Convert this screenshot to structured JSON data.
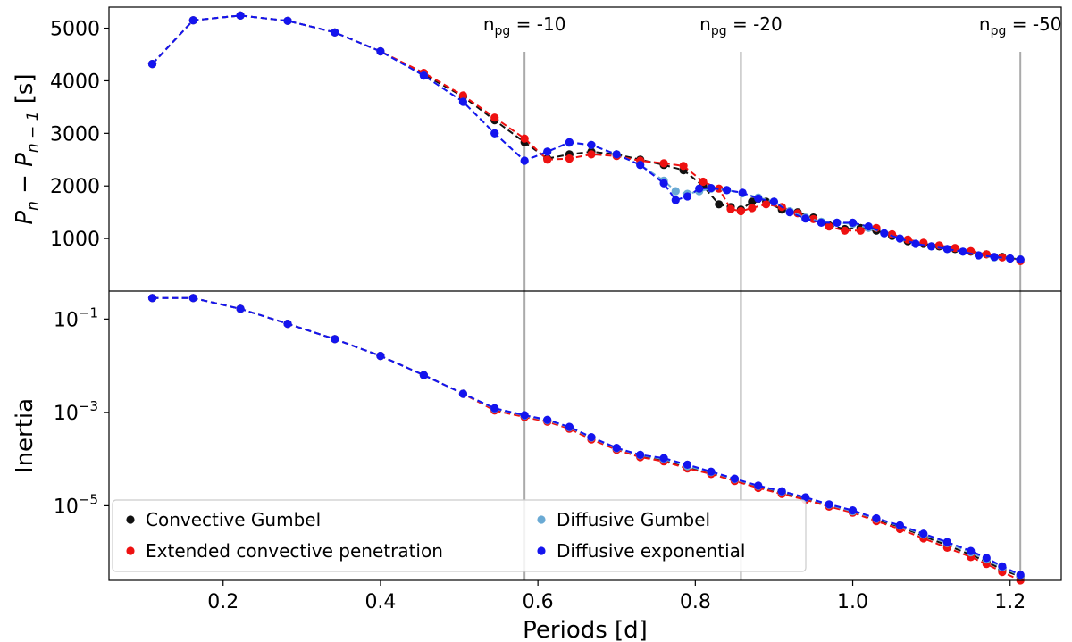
{
  "chart_data": [
    {
      "type": "line",
      "panel": "top",
      "ylabel_main": "P",
      "ylabel_sub1": "n",
      "ylabel_mid": " − P",
      "ylabel_sub2": "n − 1",
      "ylabel_unit": " [s]",
      "ylim": [
        0,
        5400
      ],
      "yticks": [
        1000,
        2000,
        3000,
        4000,
        5000
      ],
      "ytick_labels": [
        "1000",
        "2000",
        "3000",
        "4000",
        "5000"
      ],
      "series": [
        {
          "name": "Convective Gumbel",
          "color": "#111111",
          "x": [
            0.11,
            0.162,
            0.222,
            0.282,
            0.342,
            0.4,
            0.455,
            0.505,
            0.545,
            0.583,
            0.612,
            0.64,
            0.668,
            0.7,
            0.73,
            0.76,
            0.785,
            0.81,
            0.83,
            0.845,
            0.858,
            0.872,
            0.89,
            0.91,
            0.93,
            0.95,
            0.97,
            0.99,
            1.01,
            1.03,
            1.05,
            1.07,
            1.09,
            1.11,
            1.13,
            1.15,
            1.17,
            1.19,
            1.213
          ],
          "y": [
            4320,
            5150,
            5240,
            5140,
            4920,
            4560,
            4120,
            3700,
            3250,
            2830,
            2520,
            2600,
            2650,
            2600,
            2500,
            2400,
            2300,
            2000,
            1650,
            1600,
            1550,
            1700,
            1700,
            1550,
            1500,
            1400,
            1250,
            1180,
            1200,
            1150,
            1050,
            950,
            900,
            850,
            800,
            750,
            700,
            650,
            600
          ]
        },
        {
          "name": "Extended convective penetration",
          "color": "#ee1111",
          "x": [
            0.11,
            0.162,
            0.222,
            0.282,
            0.342,
            0.4,
            0.455,
            0.505,
            0.545,
            0.583,
            0.612,
            0.64,
            0.668,
            0.7,
            0.73,
            0.76,
            0.785,
            0.81,
            0.83,
            0.845,
            0.858,
            0.872,
            0.89,
            0.91,
            0.93,
            0.95,
            0.97,
            0.99,
            1.01,
            1.03,
            1.05,
            1.07,
            1.09,
            1.11,
            1.13,
            1.15,
            1.17,
            1.19,
            1.213
          ],
          "y": [
            4320,
            5150,
            5240,
            5140,
            4920,
            4560,
            4150,
            3720,
            3300,
            2900,
            2500,
            2520,
            2600,
            2570,
            2480,
            2430,
            2380,
            2080,
            1950,
            1560,
            1520,
            1580,
            1650,
            1600,
            1480,
            1370,
            1230,
            1150,
            1150,
            1200,
            1080,
            980,
            920,
            870,
            820,
            760,
            700,
            640,
            570
          ]
        },
        {
          "name": "Diffusive Gumbel",
          "color": "#6aaad4",
          "x": [
            0.11,
            0.162,
            0.222,
            0.282,
            0.342,
            0.4,
            0.455,
            0.505,
            0.545,
            0.583,
            0.612,
            0.64,
            0.668,
            0.7,
            0.73,
            0.76,
            0.775,
            0.79,
            0.805,
            0.82,
            0.84,
            0.86,
            0.88,
            0.9,
            0.92,
            0.94,
            0.96,
            0.98,
            1.0,
            1.02,
            1.04,
            1.06,
            1.08,
            1.1,
            1.12,
            1.14,
            1.16,
            1.18,
            1.2,
            1.213
          ],
          "y": [
            4320,
            5150,
            5240,
            5140,
            4920,
            4560,
            4100,
            3600,
            3000,
            2480,
            2650,
            2820,
            2780,
            2600,
            2400,
            2100,
            1900,
            1850,
            1900,
            1950,
            1920,
            1860,
            1780,
            1700,
            1520,
            1400,
            1320,
            1300,
            1280,
            1200,
            1100,
            1000,
            900,
            850,
            800,
            750,
            680,
            640,
            620,
            600
          ]
        },
        {
          "name": "Diffusive exponential",
          "color": "#1414ee",
          "x": [
            0.11,
            0.162,
            0.222,
            0.282,
            0.342,
            0.4,
            0.455,
            0.505,
            0.545,
            0.583,
            0.612,
            0.64,
            0.668,
            0.7,
            0.73,
            0.76,
            0.775,
            0.79,
            0.805,
            0.82,
            0.84,
            0.86,
            0.88,
            0.9,
            0.92,
            0.94,
            0.96,
            0.98,
            1.0,
            1.02,
            1.04,
            1.06,
            1.08,
            1.1,
            1.12,
            1.14,
            1.16,
            1.18,
            1.2,
            1.213
          ],
          "y": [
            4320,
            5150,
            5240,
            5140,
            4920,
            4560,
            4100,
            3600,
            3000,
            2480,
            2650,
            2830,
            2780,
            2600,
            2400,
            2050,
            1730,
            1800,
            1950,
            1960,
            1920,
            1870,
            1760,
            1700,
            1500,
            1380,
            1300,
            1300,
            1300,
            1230,
            1100,
            1000,
            900,
            850,
            800,
            750,
            680,
            650,
            620,
            600
          ]
        }
      ]
    },
    {
      "type": "line",
      "panel": "bottom",
      "yscale": "log",
      "ylabel": "Inertia",
      "ylim_log10": [
        -6.6,
        -0.4
      ],
      "ytick_exponents": [
        -1,
        -3,
        -5
      ],
      "ytick_base": "10",
      "series_log10": {
        "x": [
          0.11,
          0.162,
          0.222,
          0.282,
          0.342,
          0.4,
          0.455,
          0.505,
          0.545,
          0.583,
          0.612,
          0.64,
          0.668,
          0.7,
          0.73,
          0.76,
          0.79,
          0.82,
          0.85,
          0.88,
          0.91,
          0.94,
          0.97,
          1.0,
          1.03,
          1.06,
          1.09,
          1.12,
          1.15,
          1.17,
          1.19,
          1.213
        ],
        "Convective Gumbel": [
          -0.55,
          -0.55,
          -0.78,
          -1.1,
          -1.43,
          -1.79,
          -2.2,
          -2.6,
          -2.93,
          -3.08,
          -3.18,
          -3.33,
          -3.55,
          -3.78,
          -3.93,
          -4.02,
          -4.18,
          -4.3,
          -4.45,
          -4.6,
          -4.73,
          -4.85,
          -5.0,
          -5.13,
          -5.3,
          -5.45,
          -5.65,
          -5.85,
          -6.05,
          -6.2,
          -6.37,
          -6.52
        ],
        "Extended convective penetration": [
          -0.55,
          -0.55,
          -0.78,
          -1.1,
          -1.43,
          -1.79,
          -2.2,
          -2.6,
          -2.96,
          -3.1,
          -3.2,
          -3.35,
          -3.58,
          -3.8,
          -3.96,
          -4.05,
          -4.2,
          -4.32,
          -4.47,
          -4.62,
          -4.75,
          -4.87,
          -5.02,
          -5.15,
          -5.33,
          -5.5,
          -5.7,
          -5.9,
          -6.1,
          -6.25,
          -6.42,
          -6.6
        ],
        "Diffusive Gumbel": [
          -0.55,
          -0.55,
          -0.78,
          -1.1,
          -1.43,
          -1.79,
          -2.2,
          -2.6,
          -2.92,
          -3.07,
          -3.17,
          -3.32,
          -3.54,
          -3.77,
          -3.92,
          -4.0,
          -4.15,
          -4.28,
          -4.43,
          -4.58,
          -4.7,
          -4.83,
          -4.98,
          -5.12,
          -5.28,
          -5.43,
          -5.62,
          -5.8,
          -6.0,
          -6.15,
          -6.32,
          -6.5
        ],
        "Diffusive exponential": [
          -0.55,
          -0.55,
          -0.78,
          -1.1,
          -1.43,
          -1.79,
          -2.2,
          -2.6,
          -2.91,
          -3.06,
          -3.16,
          -3.31,
          -3.53,
          -3.76,
          -3.91,
          -3.98,
          -4.12,
          -4.27,
          -4.42,
          -4.57,
          -4.69,
          -4.82,
          -4.97,
          -5.1,
          -5.27,
          -5.42,
          -5.6,
          -5.78,
          -5.97,
          -6.12,
          -6.3,
          -6.48
        ]
      }
    }
  ],
  "shared": {
    "xlabel": "Periods [d]",
    "xlim": [
      0.055,
      1.265
    ],
    "xticks": [
      0.2,
      0.4,
      0.6,
      0.8,
      1.0,
      1.2
    ],
    "xtick_labels": [
      "0.2",
      "0.4",
      "0.6",
      "0.8",
      "1.0",
      "1.2"
    ],
    "vlines": [
      {
        "x": 0.583,
        "label_pre": "n",
        "label_sub": "pg",
        "label_post": " = -10"
      },
      {
        "x": 0.858,
        "label_pre": "n",
        "label_sub": "pg",
        "label_post": " = -20"
      },
      {
        "x": 1.213,
        "label_pre": "n",
        "label_sub": "pg",
        "label_post": " = -50"
      }
    ],
    "vline_color": "#aaaaaa"
  },
  "legend": {
    "location": "lower-left",
    "entries": [
      {
        "label": "Convective Gumbel",
        "color": "#111111"
      },
      {
        "label": "Extended convective penetration",
        "color": "#ee1111"
      },
      {
        "label": "Diffusive Gumbel",
        "color": "#6aaad4"
      },
      {
        "label": "Diffusive exponential",
        "color": "#1414ee"
      }
    ]
  }
}
